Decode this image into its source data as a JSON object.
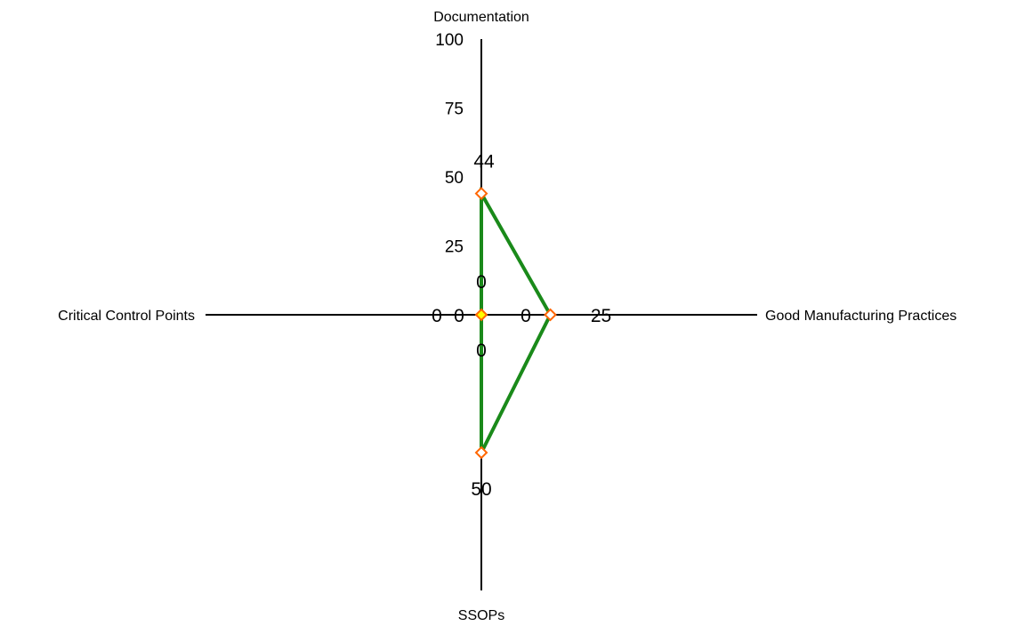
{
  "chart_data": {
    "type": "radar",
    "axes": [
      "Documentation",
      "Good Manufacturing Practices",
      "SSOPs",
      "Critical Control Points"
    ],
    "ticks": [
      "0",
      "25",
      "50",
      "75",
      "100"
    ],
    "rlim": [
      0,
      100
    ],
    "series": [
      {
        "values": [
          44,
          25,
          50,
          0
        ],
        "color": "#1a8a1a",
        "marker": "diamond",
        "marker_color": "#ff6600"
      }
    ],
    "center_labels": [
      "0",
      "0",
      "0",
      "0"
    ],
    "center_marker_color": "#ffff00",
    "grid": false,
    "legend": "none"
  }
}
